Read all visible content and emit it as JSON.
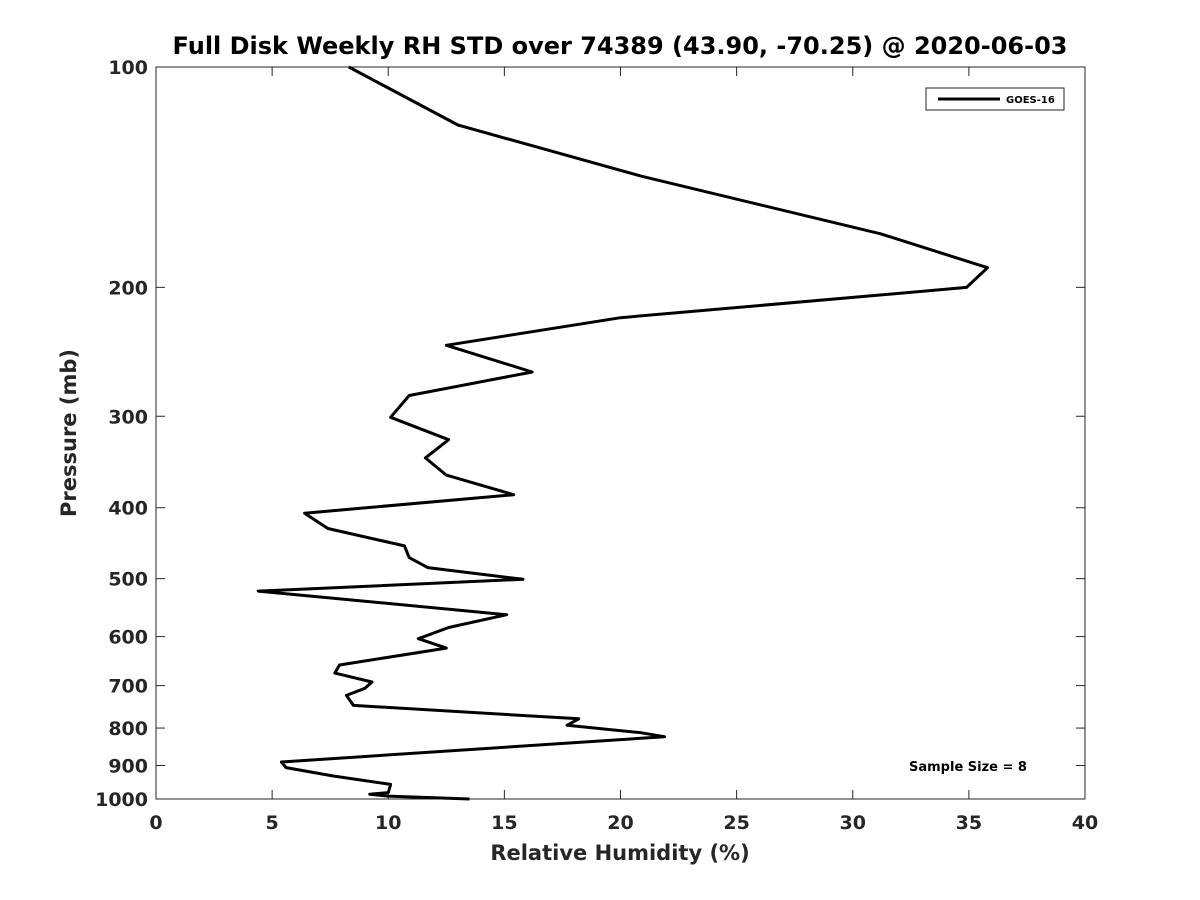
{
  "chart_data": {
    "type": "line",
    "title": "Full Disk Weekly RH STD over 74389 (43.90, -70.25) @ 2020-06-03",
    "xlabel": "Relative Humidity (%)",
    "ylabel": "Pressure (mb)",
    "xlim": [
      0,
      40
    ],
    "ylim": [
      100,
      1000
    ],
    "y_scale": "log",
    "y_reversed": true,
    "x_ticks": [
      0,
      5,
      10,
      15,
      20,
      25,
      30,
      35,
      40
    ],
    "y_ticks": [
      100,
      200,
      300,
      400,
      500,
      600,
      700,
      800,
      900,
      1000
    ],
    "grid": false,
    "legend_position": "top-right",
    "annotation": "Sample Size = 8",
    "series": [
      {
        "name": "GOES-16",
        "color": "#000000",
        "points": [
          [
            8.3,
            100
          ],
          [
            13.0,
            120
          ],
          [
            20.9,
            141
          ],
          [
            31.2,
            169
          ],
          [
            35.8,
            188
          ],
          [
            34.9,
            200
          ],
          [
            20.0,
            220
          ],
          [
            12.5,
            240
          ],
          [
            16.2,
            261
          ],
          [
            10.9,
            281
          ],
          [
            10.1,
            301
          ],
          [
            12.6,
            323
          ],
          [
            11.6,
            342
          ],
          [
            12.5,
            361
          ],
          [
            15.4,
            384
          ],
          [
            6.4,
            407
          ],
          [
            7.4,
            427
          ],
          [
            10.7,
            451
          ],
          [
            10.9,
            468
          ],
          [
            11.7,
            483
          ],
          [
            15.8,
            501
          ],
          [
            4.4,
            520
          ],
          [
            15.1,
            560
          ],
          [
            12.6,
            583
          ],
          [
            11.3,
            604
          ],
          [
            12.5,
            622
          ],
          [
            7.9,
            656
          ],
          [
            7.7,
            673
          ],
          [
            9.3,
            692
          ],
          [
            9.0,
            706
          ],
          [
            8.2,
            722
          ],
          [
            8.5,
            745
          ],
          [
            18.2,
            777
          ],
          [
            17.7,
            793
          ],
          [
            20.9,
            812
          ],
          [
            21.9,
            822
          ],
          [
            5.4,
            890
          ],
          [
            5.6,
            906
          ],
          [
            7.6,
            930
          ],
          [
            10.1,
            955
          ],
          [
            10.0,
            980
          ],
          [
            9.2,
            985
          ],
          [
            10.0,
            991
          ],
          [
            13.5,
            1000
          ]
        ]
      }
    ]
  }
}
